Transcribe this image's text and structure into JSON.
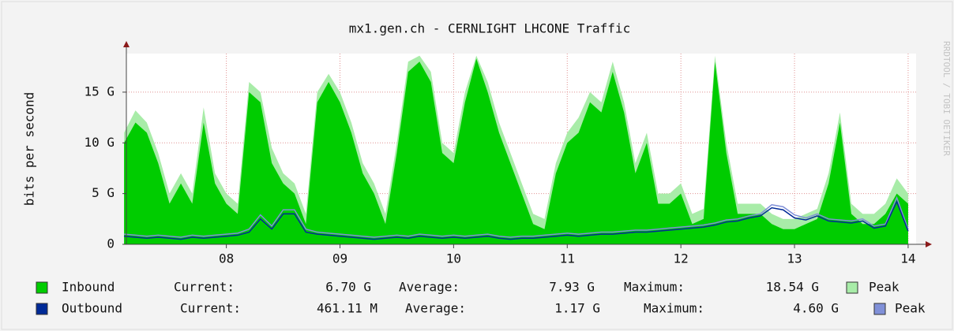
{
  "chart_data": {
    "type": "area",
    "title": "mx1.gen.ch - CERNLIGHT LHCONE Traffic",
    "y_label": "bits per second",
    "watermark": "RRDTOOL / TOBI OETIKER",
    "grid": true,
    "xlim": [
      7.12,
      14.07
    ],
    "xticks": [
      {
        "value": 8,
        "label": "08"
      },
      {
        "value": 9,
        "label": "09"
      },
      10,
      11,
      12,
      13,
      14
    ],
    "ylim": [
      0,
      18.8
    ],
    "yticks": [
      0,
      {
        "value": 5,
        "label": "5 G"
      },
      {
        "value": 10,
        "label": "10 G"
      },
      {
        "value": 15,
        "label": "15 G"
      }
    ],
    "x": [
      7.1,
      7.2,
      7.3,
      7.4,
      7.5,
      7.6,
      7.7,
      7.8,
      7.9,
      8.0,
      8.1,
      8.2,
      8.3,
      8.4,
      8.5,
      8.6,
      8.7,
      8.8,
      8.9,
      9.0,
      9.1,
      9.2,
      9.3,
      9.4,
      9.5,
      9.6,
      9.7,
      9.8,
      9.9,
      10.0,
      10.1,
      10.2,
      10.3,
      10.4,
      10.5,
      10.6,
      10.7,
      10.8,
      10.9,
      11.0,
      11.1,
      11.2,
      11.3,
      11.4,
      11.5,
      11.6,
      11.7,
      11.8,
      11.9,
      12.0,
      12.1,
      12.2,
      12.3,
      12.4,
      12.5,
      12.6,
      12.7,
      12.8,
      12.9,
      13.0,
      13.1,
      13.2,
      13.3,
      13.4,
      13.5,
      13.6,
      13.7,
      13.8,
      13.9,
      14.0
    ],
    "series": [
      {
        "name": "Inbound",
        "color": "#00cc00",
        "values": [
          10,
          12,
          11,
          8,
          4,
          6,
          4,
          12,
          6,
          4,
          3,
          15,
          14,
          8,
          6,
          5,
          2,
          14,
          16,
          14,
          11,
          7,
          5,
          2,
          9,
          17,
          18,
          16,
          9,
          8,
          14,
          18.3,
          15,
          11,
          8,
          5,
          2,
          1.5,
          7,
          10,
          11,
          14,
          13,
          17,
          13,
          7,
          10,
          4,
          4,
          5,
          2,
          2.5,
          18,
          9,
          3,
          3,
          3,
          2,
          1.5,
          1.5,
          2,
          2.5,
          6,
          12,
          3,
          2,
          2,
          3,
          5,
          4
        ],
        "stats": [
          {
            "label": "Current:",
            "value": "6.70 G"
          },
          {
            "label": "Average:",
            "value": "7.93 G"
          },
          {
            "label": "Maximum:",
            "value": "18.54 G"
          }
        ],
        "peak": {
          "name": "Peak",
          "color": "#a8eca8",
          "values": [
            11,
            13.2,
            12,
            9,
            5,
            7,
            5,
            13.5,
            7,
            5,
            4,
            16,
            15,
            9.5,
            7,
            6,
            3,
            15,
            16.8,
            15,
            12,
            8,
            6,
            3,
            10,
            18,
            18.6,
            17,
            10,
            9,
            15,
            18.6,
            16,
            12,
            9,
            6,
            3,
            2.5,
            8,
            11,
            12.5,
            15,
            14,
            18,
            14,
            8,
            11,
            5,
            5,
            6,
            3,
            3.5,
            18.6,
            10,
            4,
            4,
            4,
            3,
            2.5,
            2.5,
            3,
            3.5,
            7,
            13,
            4,
            3,
            3,
            4,
            6.5,
            5
          ]
        }
      },
      {
        "name": "Outbound",
        "color": "#002a97",
        "values": [
          0.8,
          0.7,
          0.6,
          0.7,
          0.6,
          0.5,
          0.7,
          0.6,
          0.7,
          0.8,
          0.9,
          1.2,
          2.5,
          1.5,
          3,
          3,
          1.2,
          1,
          0.9,
          0.8,
          0.7,
          0.6,
          0.5,
          0.6,
          0.7,
          0.6,
          0.8,
          0.7,
          0.6,
          0.7,
          0.6,
          0.7,
          0.8,
          0.6,
          0.5,
          0.6,
          0.6,
          0.7,
          0.8,
          0.9,
          0.8,
          0.9,
          1,
          1,
          1.1,
          1.2,
          1.2,
          1.3,
          1.4,
          1.5,
          1.6,
          1.7,
          1.9,
          2.2,
          2.3,
          2.6,
          2.8,
          3.6,
          3.4,
          2.6,
          2.4,
          2.8,
          2.3,
          2.2,
          2.1,
          2.3,
          1.6,
          1.8,
          4.2,
          1.3
        ],
        "stats": [
          {
            "label": "Current:",
            "value": "461.11 M"
          },
          {
            "label": "Average:",
            "value": "1.17 G"
          },
          {
            "label": "Maximum:",
            "value": "4.60 G"
          }
        ],
        "peak": {
          "name": "Peak",
          "color": "#8090d8",
          "values": [
            1,
            0.9,
            0.8,
            0.9,
            0.8,
            0.7,
            0.9,
            0.8,
            0.9,
            1,
            1.1,
            1.5,
            2.9,
            1.8,
            3.4,
            3.4,
            1.5,
            1.2,
            1.1,
            1,
            0.9,
            0.8,
            0.7,
            0.8,
            0.9,
            0.8,
            1,
            0.9,
            0.8,
            0.9,
            0.8,
            0.9,
            1,
            0.8,
            0.7,
            0.8,
            0.8,
            0.9,
            1,
            1.1,
            1,
            1.1,
            1.2,
            1.2,
            1.3,
            1.4,
            1.4,
            1.5,
            1.6,
            1.7,
            1.8,
            1.9,
            2.1,
            2.4,
            2.5,
            2.8,
            3,
            3.9,
            3.7,
            2.9,
            2.6,
            3,
            2.5,
            2.4,
            2.3,
            2.5,
            1.8,
            2,
            4.6,
            1.5
          ]
        }
      }
    ]
  }
}
